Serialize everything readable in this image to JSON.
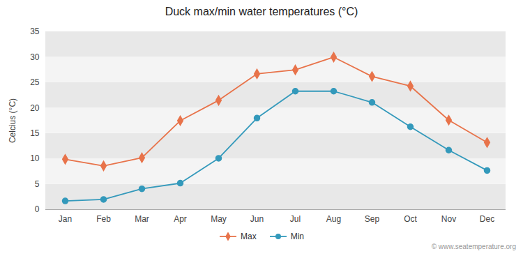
{
  "chart_data": {
    "type": "line",
    "title": "Duck max/min water temperatures (°C)",
    "ylabel": "Celcius (°C)",
    "categories": [
      "Jan",
      "Feb",
      "Mar",
      "Apr",
      "May",
      "Jun",
      "Jul",
      "Aug",
      "Sep",
      "Oct",
      "Nov",
      "Dec"
    ],
    "series": [
      {
        "name": "Max",
        "color": "#e8734a",
        "marker": "diamond",
        "values": [
          9.9,
          8.6,
          10.2,
          17.5,
          21.5,
          26.7,
          27.5,
          30.0,
          26.2,
          24.3,
          17.6,
          13.2
        ]
      },
      {
        "name": "Min",
        "color": "#3399bb",
        "marker": "circle",
        "values": [
          1.7,
          2.0,
          4.1,
          5.2,
          10.1,
          18.0,
          23.3,
          23.3,
          21.1,
          16.3,
          11.7,
          7.7
        ]
      }
    ],
    "ylim": [
      0,
      35
    ],
    "yticks": [
      0,
      5,
      10,
      15,
      20,
      25,
      30,
      35
    ],
    "grid": true,
    "legend": "bottom",
    "annotations": [
      "© www.seatemperature.org"
    ]
  }
}
